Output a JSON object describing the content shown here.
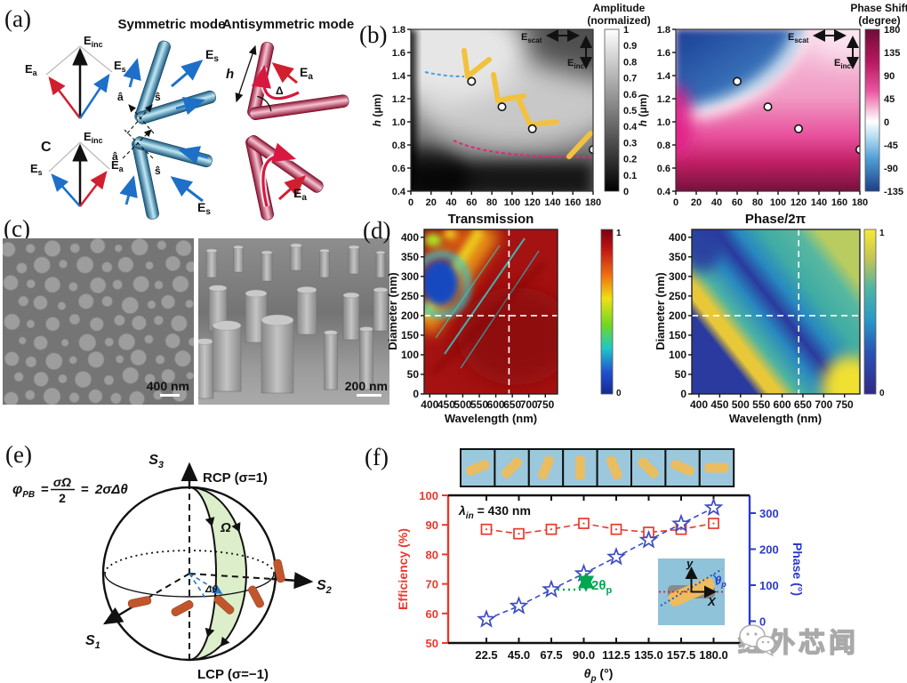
{
  "watermark": {
    "text": "红外芯闻"
  },
  "panel_a": {
    "label": "(a)",
    "symmetric_title": "Symmetric mode",
    "antisymmetric_title": "Antisymmetric mode",
    "c_label": "C",
    "e_inc": {
      "base": "E",
      "sub": "inc"
    },
    "e_a": {
      "base": "E",
      "sub": "a"
    },
    "e_s": {
      "base": "E",
      "sub": "s"
    },
    "a_hat": "â",
    "s_hat": "ŝ",
    "h_label": "h",
    "delta_label": "Δ"
  },
  "panel_b": {
    "label": "(b)",
    "amplitude": {
      "colorbar_title_1": "Amplitude",
      "colorbar_title_2": "(normalized)",
      "colorbar_ticks": [
        "1",
        "0.9",
        "0.8",
        "0.7",
        "0.6",
        "0.5",
        "0.4",
        "0.3",
        "0.2",
        "0.1",
        "0"
      ]
    },
    "phase": {
      "colorbar_title_1": "Phase Shift",
      "colorbar_title_2": "(degree)",
      "colorbar_ticks": [
        "180",
        "135",
        "90",
        "45",
        "0",
        "-45",
        "-90",
        "-135"
      ]
    },
    "ylabel_it": "h",
    "ylabel_rest": " (μm)",
    "yticks": [
      "1.8",
      "1.6",
      "1.4",
      "1.2",
      "1.0",
      "0.8",
      "0.6",
      "0.4"
    ],
    "xticks": [
      "0",
      "20",
      "40",
      "60",
      "80",
      "100",
      "120",
      "140",
      "160",
      "180"
    ],
    "e_scat": {
      "base": "E",
      "sub": "scat"
    },
    "e_inc": {
      "base": "E",
      "sub": "inc"
    }
  },
  "panel_c": {
    "label": "(c)",
    "scalebar_left": "400 nm",
    "scalebar_right": "200 nm"
  },
  "panel_d": {
    "label": "(d)",
    "left_title": "Transmission",
    "right_title": "Phase/2π",
    "ylabel": "Diameter (nm)",
    "xlabel": "Wavelength (nm)",
    "yticks": [
      "400",
      "350",
      "300",
      "250",
      "200",
      "150",
      "100",
      "50",
      "0"
    ],
    "xticks": [
      "400",
      "450",
      "500",
      "550",
      "600",
      "650",
      "700",
      "750"
    ],
    "colorbar_top": "1",
    "colorbar_bottom": "0"
  },
  "panel_e": {
    "label": "(e)",
    "formula": {
      "phi": "φ",
      "pb": "PB",
      "eq1": "=",
      "num": "σΩ",
      "den": "2",
      "eq2": "=",
      "rhs": "2σΔθ"
    },
    "s1": {
      "base": "S",
      "sub": "1"
    },
    "s2": {
      "base": "S",
      "sub": "2"
    },
    "s3": {
      "base": "S",
      "sub": "3"
    },
    "rcp": "RCP (σ=1)",
    "lcp": "LCP (σ=−1)",
    "omega": "Ω",
    "dtheta": "Δθ"
  },
  "panel_f": {
    "label": "(f)",
    "annotation": {
      "lambda": "λ",
      "sub": "in",
      "rest": " = 430 nm"
    },
    "ylabel_left": "Efficiency (%)",
    "ylabel_right": "Phase (°)",
    "xlabel": {
      "base": "θ",
      "sub": "p",
      "unit": " (°)"
    },
    "green_label": {
      "pre": "2θ",
      "sub": "p"
    },
    "inset": {
      "x_label": "X",
      "y_label": "y",
      "theta_base": "θ",
      "theta_sub": "p"
    },
    "yticks_left": [
      "100",
      "90",
      "80",
      "70",
      "60",
      "50"
    ],
    "yticks_right": [
      "300",
      "200",
      "100",
      "0"
    ],
    "xticks": [
      "22.5",
      "45.0",
      "67.5",
      "90.0",
      "112.5",
      "135.0",
      "157.5",
      "180.0"
    ]
  },
  "chart_data": [
    {
      "id": "b-amplitude",
      "type": "heatmap",
      "title": "Amplitude (normalized)",
      "ylabel": "h (μm)",
      "xlim": [
        0,
        180
      ],
      "ylim": [
        0.4,
        1.8
      ],
      "colorbar_range": [
        0,
        1
      ],
      "markers": [
        [
          60,
          1.35
        ],
        [
          90,
          1.13
        ],
        [
          120,
          0.94
        ],
        [
          180,
          0.76
        ]
      ],
      "note": "bright band of near-unity scattering amplitude across antenna opening angles; dark at small angles and small h"
    },
    {
      "id": "b-phase-shift",
      "type": "heatmap",
      "title": "Phase Shift (degree)",
      "ylabel": "h (μm)",
      "xlim": [
        0,
        180
      ],
      "ylim": [
        0.4,
        1.8
      ],
      "colorbar_range": [
        -135,
        180
      ],
      "markers": [
        [
          60,
          1.35
        ],
        [
          90,
          1.13
        ],
        [
          120,
          0.94
        ],
        [
          180,
          0.76
        ]
      ],
      "note": "negative (blue) phase at top-left, positive (pink to maroon) toward bottom"
    },
    {
      "id": "d-transmission",
      "type": "heatmap",
      "title": "Transmission",
      "xlabel": "Wavelength (nm)",
      "ylabel": "Diameter (nm)",
      "xlim": [
        385,
        785
      ],
      "ylim": [
        0,
        420
      ],
      "colorbar_range": [
        0,
        1
      ],
      "crosshair": [
        640,
        200
      ],
      "note": "high transmission (dark red) except resonance dips (blue/cyan/yellow) at short wavelengths and large diameters"
    },
    {
      "id": "d-phase",
      "type": "heatmap",
      "title": "Phase/2π",
      "xlabel": "Wavelength (nm)",
      "ylabel": "Diameter (nm)",
      "xlim": [
        385,
        785
      ],
      "ylim": [
        0,
        420
      ],
      "colorbar_range": [
        0,
        1
      ],
      "crosshair": [
        640,
        200
      ],
      "note": "diagonal full 0-2π phase bands sweeping from lower-left to upper-right"
    },
    {
      "id": "f-efficiency-phase",
      "type": "line",
      "x": [
        22.5,
        45,
        67.5,
        90,
        112.5,
        135,
        157.5,
        180
      ],
      "series": [
        {
          "name": "Efficiency (%)",
          "axis": "left",
          "marker": "square",
          "color": "#e8392e",
          "values": [
            88.5,
            87,
            88.5,
            90.5,
            88.5,
            87.5,
            88.5,
            90.5
          ]
        },
        {
          "name": "Phase (°)",
          "axis": "right",
          "marker": "star",
          "color": "#3b4cc0",
          "values": [
            5,
            42,
            88,
            132,
            178,
            225,
            270,
            315
          ]
        }
      ],
      "ylim_left": [
        50,
        100
      ],
      "ylim_right": [
        0,
        330
      ],
      "annotation": "λin = 430 nm",
      "rotor_angles_deg": [
        22.5,
        45,
        67.5,
        90,
        112.5,
        135,
        157.5,
        180
      ]
    }
  ]
}
